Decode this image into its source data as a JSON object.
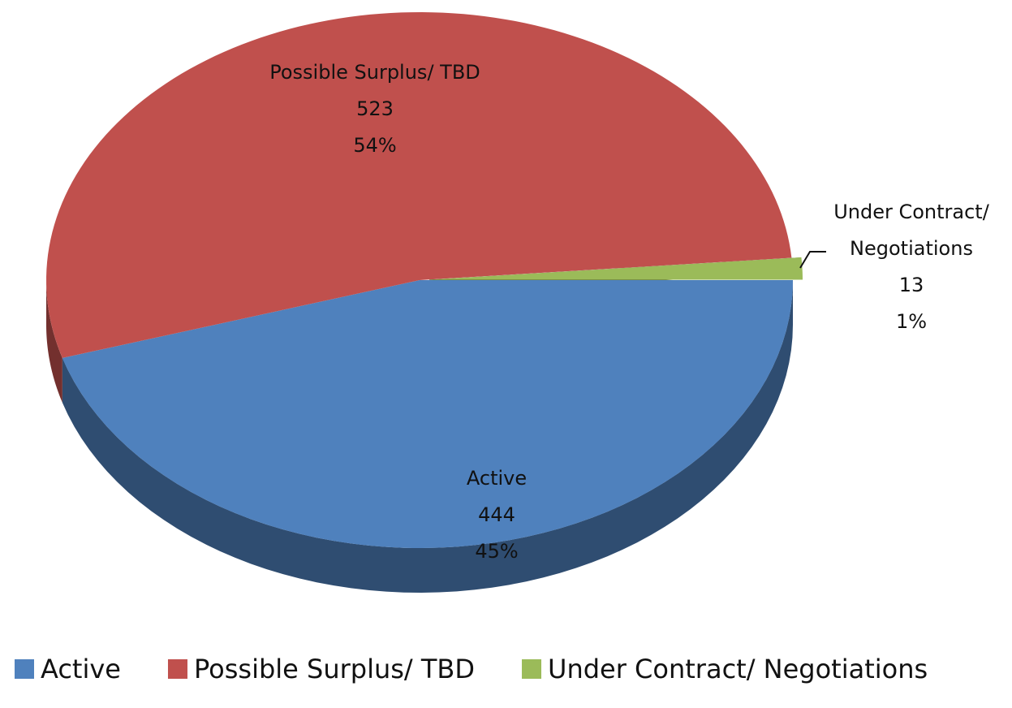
{
  "chart_data": {
    "type": "pie",
    "categories": [
      "Active",
      "Possible Surplus/ TBD",
      "Under Contract/ Negotiations"
    ],
    "values": [
      444,
      523,
      13
    ],
    "percent_labels": [
      "45%",
      "54%",
      "1%"
    ],
    "label_names": [
      "Active",
      "Possible Surplus/ TBD",
      [
        "Under Contract/",
        "Negotiations"
      ]
    ],
    "colors": [
      "#4f81bd",
      "#c0504d",
      "#9bbb59"
    ],
    "legend": "bottom"
  }
}
